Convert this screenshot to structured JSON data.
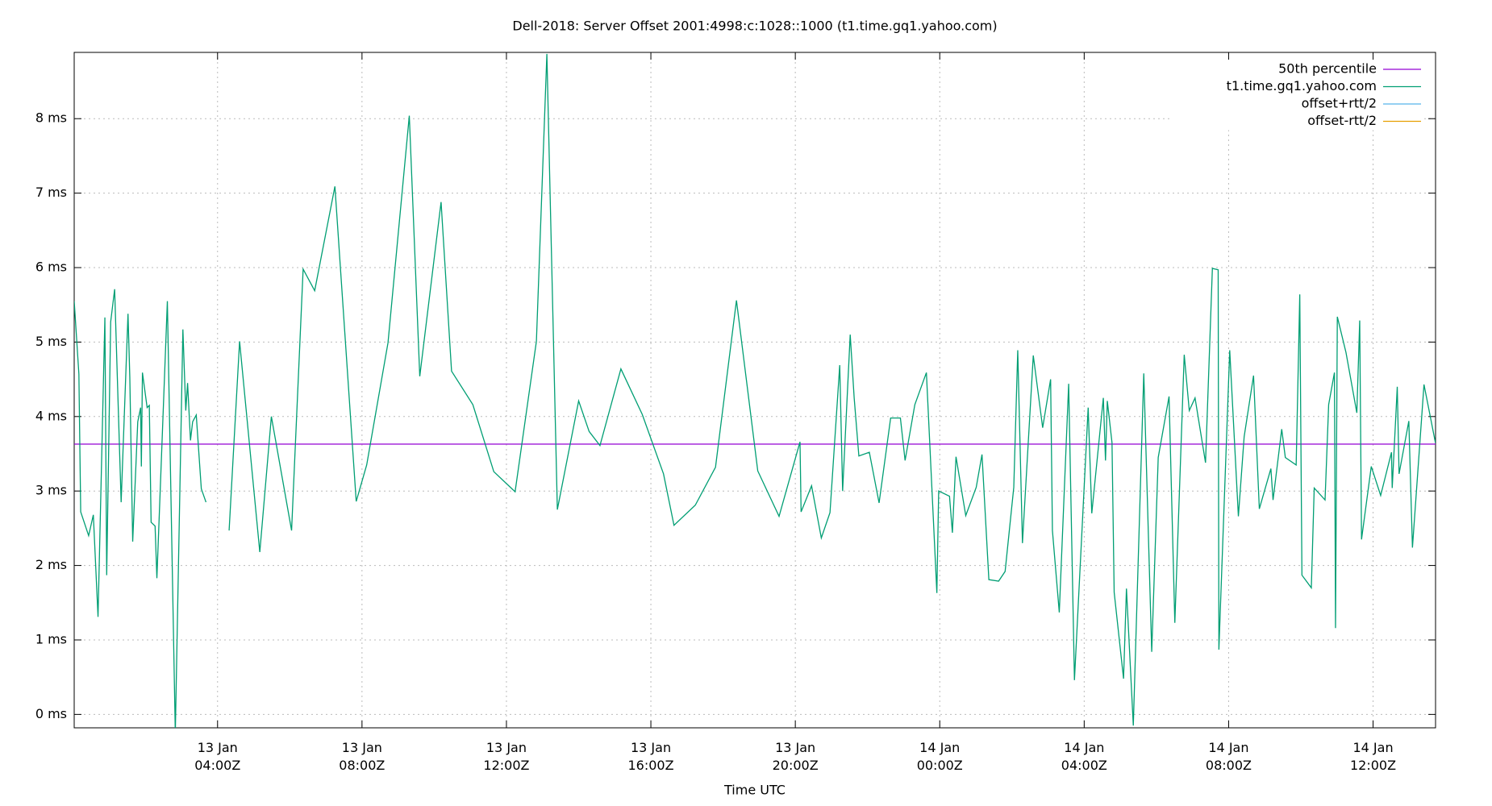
{
  "chart_data": {
    "type": "line",
    "title": "Dell-2018: Server Offset 2001:4998:c:1028::1000 (t1.time.gq1.yahoo.com)",
    "x_label": "Time UTC",
    "xlim": [
      0.03,
      37.73
    ],
    "ylim": [
      -0.18,
      8.89
    ],
    "xticks": [
      {
        "value": 4,
        "label": "13 Jan\n04:00Z"
      },
      {
        "value": 8,
        "label": "13 Jan\n08:00Z"
      },
      {
        "value": 12,
        "label": "13 Jan\n12:00Z"
      },
      {
        "value": 16,
        "label": "13 Jan\n16:00Z"
      },
      {
        "value": 20,
        "label": "13 Jan\n20:00Z"
      },
      {
        "value": 24,
        "label": "14 Jan\n00:00Z"
      },
      {
        "value": 28,
        "label": "14 Jan\n04:00Z"
      },
      {
        "value": 32,
        "label": "14 Jan\n08:00Z"
      },
      {
        "value": 36,
        "label": "14 Jan\n12:00Z"
      }
    ],
    "yticks": [
      {
        "value": 0,
        "label": "0 ms"
      },
      {
        "value": 1,
        "label": "1 ms"
      },
      {
        "value": 2,
        "label": "2 ms"
      },
      {
        "value": 3,
        "label": "3 ms"
      },
      {
        "value": 4,
        "label": "4 ms"
      },
      {
        "value": 5,
        "label": "5 ms"
      },
      {
        "value": 6,
        "label": "6 ms"
      },
      {
        "value": 7,
        "label": "7 ms"
      },
      {
        "value": 8,
        "label": "8 ms"
      }
    ],
    "grid": true,
    "legend": "top-right",
    "percentile": {
      "name": "50th percentile",
      "color": "#9400d3",
      "value": 3.63
    },
    "series": [
      {
        "name": "t1.time.gq1.yahoo.com",
        "color": "#009e73",
        "x": [
          0.03,
          0.16,
          0.21,
          0.43,
          0.56,
          0.69,
          0.88,
          0.93,
          1.04,
          1.15,
          1.33,
          1.52,
          1.57,
          1.65,
          1.79,
          1.87,
          1.89,
          1.92,
          2.05,
          2.11,
          2.16,
          2.27,
          2.32,
          2.61,
          2.83,
          3.04,
          3.12,
          3.17,
          3.25,
          3.31,
          3.41,
          3.55,
          3.68,
          3.9,
          4.32,
          4.61,
          5.17,
          5.49,
          6.05,
          6.37,
          6.69,
          7.25,
          7.84,
          8.13,
          8.72,
          9.31,
          9.6,
          10.19,
          10.48,
          11.07,
          11.65,
          12.24,
          12.83,
          13.12,
          13.41,
          14.0,
          14.29,
          14.59,
          15.17,
          15.76,
          16.35,
          16.64,
          17.23,
          17.79,
          18.37,
          18.96,
          19.55,
          20.13,
          20.16,
          20.45,
          20.72,
          20.96,
          21.23,
          21.31,
          21.52,
          21.63,
          21.76,
          22.05,
          22.32,
          22.64,
          22.91,
          23.04,
          23.31,
          23.63,
          23.92,
          23.97,
          24.27,
          24.35,
          24.45,
          24.72,
          25.01,
          25.17,
          25.36,
          25.63,
          25.81,
          26.05,
          26.16,
          26.29,
          26.59,
          26.85,
          27.07,
          27.12,
          27.31,
          27.57,
          27.73,
          28.11,
          28.21,
          28.53,
          28.59,
          28.64,
          28.77,
          28.83,
          29.09,
          29.17,
          29.36,
          29.65,
          29.87,
          30.05,
          30.35,
          30.51,
          30.77,
          30.91,
          31.07,
          31.36,
          31.55,
          31.71,
          31.73,
          32.03,
          32.27,
          32.43,
          32.69,
          32.85,
          33.17,
          33.23,
          33.47,
          33.57,
          33.87,
          33.97,
          34.03,
          34.29,
          34.37,
          34.67,
          34.77,
          34.93,
          34.96,
          35.01,
          35.25,
          35.55,
          35.63,
          35.68,
          35.95,
          36.21,
          36.51,
          36.53,
          36.67,
          36.72,
          36.99,
          37.09,
          37.41,
          37.73
        ],
        "values": [
          5.55,
          4.57,
          2.72,
          2.4,
          2.68,
          1.31,
          5.33,
          1.87,
          5.27,
          5.71,
          2.85,
          5.38,
          4.53,
          2.32,
          3.93,
          4.12,
          3.33,
          4.59,
          4.12,
          4.15,
          2.58,
          2.53,
          1.83,
          5.55,
          -0.25,
          5.17,
          4.08,
          4.45,
          3.68,
          3.93,
          4.02,
          3.03,
          2.85,
          null,
          2.47,
          5.01,
          2.18,
          4.0,
          2.47,
          5.98,
          5.69,
          7.09,
          2.86,
          3.35,
          4.99,
          8.04,
          4.54,
          6.88,
          4.61,
          4.16,
          3.26,
          2.99,
          5.01,
          8.87,
          2.75,
          4.21,
          3.8,
          3.61,
          4.64,
          4.03,
          3.23,
          2.54,
          2.81,
          3.32,
          5.56,
          3.27,
          2.66,
          3.66,
          2.72,
          3.07,
          2.37,
          2.71,
          4.69,
          3.0,
          5.1,
          4.25,
          3.47,
          3.52,
          2.84,
          3.98,
          3.98,
          3.41,
          4.16,
          4.59,
          1.63,
          3.0,
          2.93,
          2.44,
          3.46,
          2.67,
          3.05,
          3.49,
          1.81,
          1.79,
          1.92,
          3.05,
          4.89,
          2.3,
          4.82,
          3.85,
          4.5,
          2.47,
          1.37,
          4.44,
          0.46,
          4.12,
          2.7,
          4.25,
          3.41,
          4.21,
          3.65,
          1.64,
          0.48,
          1.69,
          -0.15,
          4.58,
          0.84,
          3.45,
          4.27,
          1.23,
          4.83,
          4.08,
          4.25,
          3.38,
          5.99,
          5.97,
          0.87,
          4.89,
          2.66,
          3.73,
          4.55,
          2.76,
          3.3,
          2.88,
          3.83,
          3.45,
          3.35,
          5.64,
          1.87,
          1.7,
          3.04,
          2.88,
          4.16,
          4.59,
          1.16,
          5.34,
          4.86,
          4.05,
          5.29,
          2.35,
          3.33,
          2.94,
          3.52,
          3.04,
          4.4,
          3.23,
          3.94,
          2.24,
          4.43,
          3.64
        ]
      },
      {
        "name": "offset+rtt/2",
        "color": "#56b4e9"
      },
      {
        "name": "offset-rtt/2",
        "color": "#e69f00"
      }
    ]
  }
}
